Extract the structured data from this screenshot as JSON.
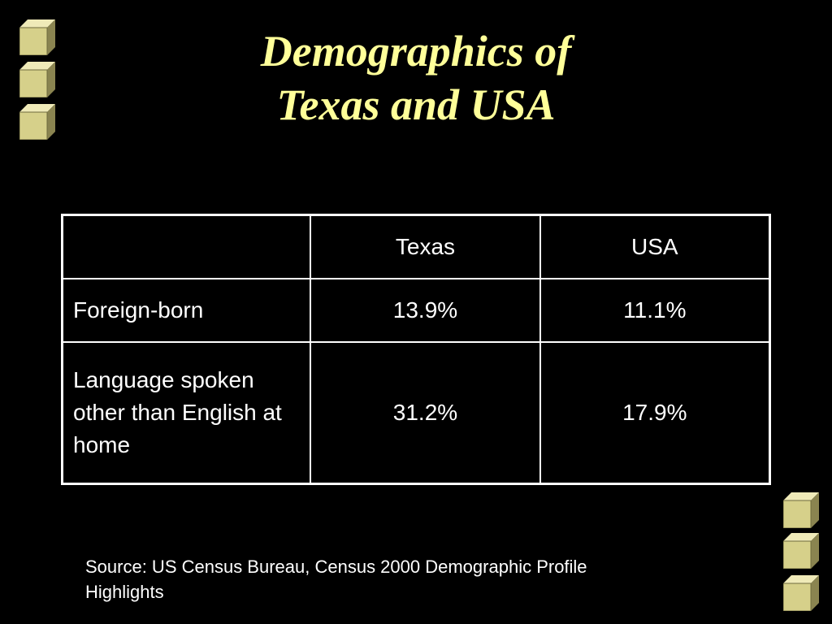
{
  "slide": {
    "title_line1": "Demographics of",
    "title_line2": "Texas and USA"
  },
  "table": {
    "headers": [
      "",
      "Texas",
      "USA"
    ],
    "rows": [
      {
        "label": "Foreign-born",
        "texas": "13.9%",
        "usa": "11.1%"
      },
      {
        "label": "Language spoken other than English at home",
        "texas": "31.2%",
        "usa": "17.9%"
      }
    ]
  },
  "footer": {
    "source": "Source: US Census Bureau, Census 2000 Demographic Profile Highlights"
  },
  "colors": {
    "background": "#000000",
    "title": "#ffff99",
    "text": "#ffffff",
    "cube_face": "#d6d08a"
  },
  "decorations": {
    "top_left_icons": [
      "cube-icon",
      "cube-icon",
      "cube-icon"
    ],
    "bottom_right_icons": [
      "cube-icon",
      "cube-icon",
      "cube-icon"
    ]
  }
}
